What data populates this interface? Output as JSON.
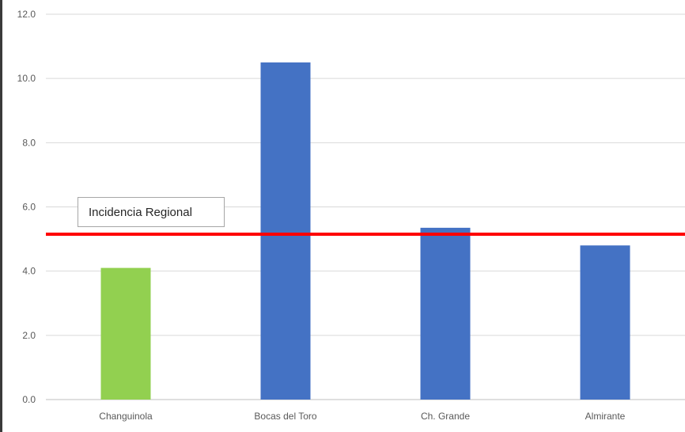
{
  "chart_data": {
    "type": "bar",
    "categories": [
      "Changuinola",
      "Bocas del Toro",
      "Ch. Grande",
      "Almirante"
    ],
    "values": [
      4.1,
      10.5,
      5.35,
      4.8
    ],
    "bar_colors": [
      "#92d050",
      "#4472c4",
      "#4472c4",
      "#4472c4"
    ],
    "y_ticks": [
      "0.0",
      "2.0",
      "4.0",
      "6.0",
      "8.0",
      "10.0",
      "12.0"
    ],
    "ylim": [
      0,
      12
    ],
    "grid": true,
    "reference_line": {
      "value": 5.15,
      "color": "#ff0000"
    },
    "annotation": "Incidencia Regional",
    "title": "",
    "xlabel": "",
    "ylabel": ""
  }
}
